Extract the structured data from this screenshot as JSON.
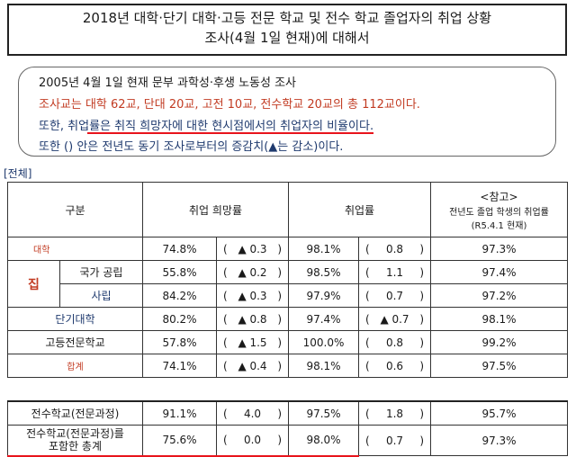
{
  "title": {
    "line1": "2018년 대학·단기 대학·고등 전문 학교 및 전수 학교 졸업자의 취업 상황",
    "line2": "조사(4월 1일 현재)에 대해서"
  },
  "note": {
    "line1": "2005년 4월 1일 현재 문부 과학성·후생 노동성 조사",
    "line2": "조사교는 대학 62교, 단대 20교, 고전 10교, 전수학교 20교의 총 112교이다.",
    "line3": "또한, 취업률은 취직 희망자에 대한 현시점에서의 취업자의 비율이다.",
    "line4": "또한 () 안은 전년도 동기 조사로부터의 증감치(▲는 감소)이다."
  },
  "section_label": "[전체]",
  "headers": {
    "category": "구분",
    "hope_rate": "취업 희망률",
    "employment_rate": "취업률",
    "ref_title": "<참고>",
    "ref_sub1": "전년도 졸업 학생의 취업률",
    "ref_sub2": "(R5.4.1 현재)"
  },
  "rows": [
    {
      "label": "대학",
      "group": "",
      "hope": "74.8%",
      "hope_diff": "▲ 0.3",
      "emp": "98.1%",
      "emp_diff": "0.8",
      "ref": "97.3%"
    },
    {
      "label": "국가 공립",
      "group": "집",
      "hope": "55.8%",
      "hope_diff": "▲ 0.2",
      "emp": "98.5%",
      "emp_diff": "1.1",
      "ref": "97.4%"
    },
    {
      "label": "사립",
      "group": "",
      "hope": "84.2%",
      "hope_diff": "▲ 0.3",
      "emp": "97.9%",
      "emp_diff": "0.7",
      "ref": "97.2%"
    },
    {
      "label": "단기대학",
      "hope": "80.2%",
      "hope_diff": "▲ 0.8",
      "emp": "97.4%",
      "emp_diff": "▲ 0.7",
      "ref": "98.1%"
    },
    {
      "label": "고등전문학교",
      "hope": "57.8%",
      "hope_diff": "▲ 1.5",
      "emp": "100.0%",
      "emp_diff": "0.8",
      "ref": "99.2%"
    },
    {
      "label": "합계",
      "hope": "74.1%",
      "hope_diff": "▲ 0.4",
      "emp": "98.1%",
      "emp_diff": "0.6",
      "ref": "97.5%"
    }
  ],
  "extra_rows": [
    {
      "label": "전수학교(전문과정)",
      "hope": "91.1%",
      "hope_diff": "4.0",
      "emp": "97.5%",
      "emp_diff": "1.8",
      "ref": "95.7%"
    },
    {
      "label1": "전수학교(전문과정)를",
      "label2": "포함한 총계",
      "hope": "75.6%",
      "hope_diff": "0.0",
      "emp": "98.0%",
      "emp_diff": "0.7",
      "ref": "97.3%"
    }
  ],
  "paren_open": "(",
  "paren_close": ")"
}
